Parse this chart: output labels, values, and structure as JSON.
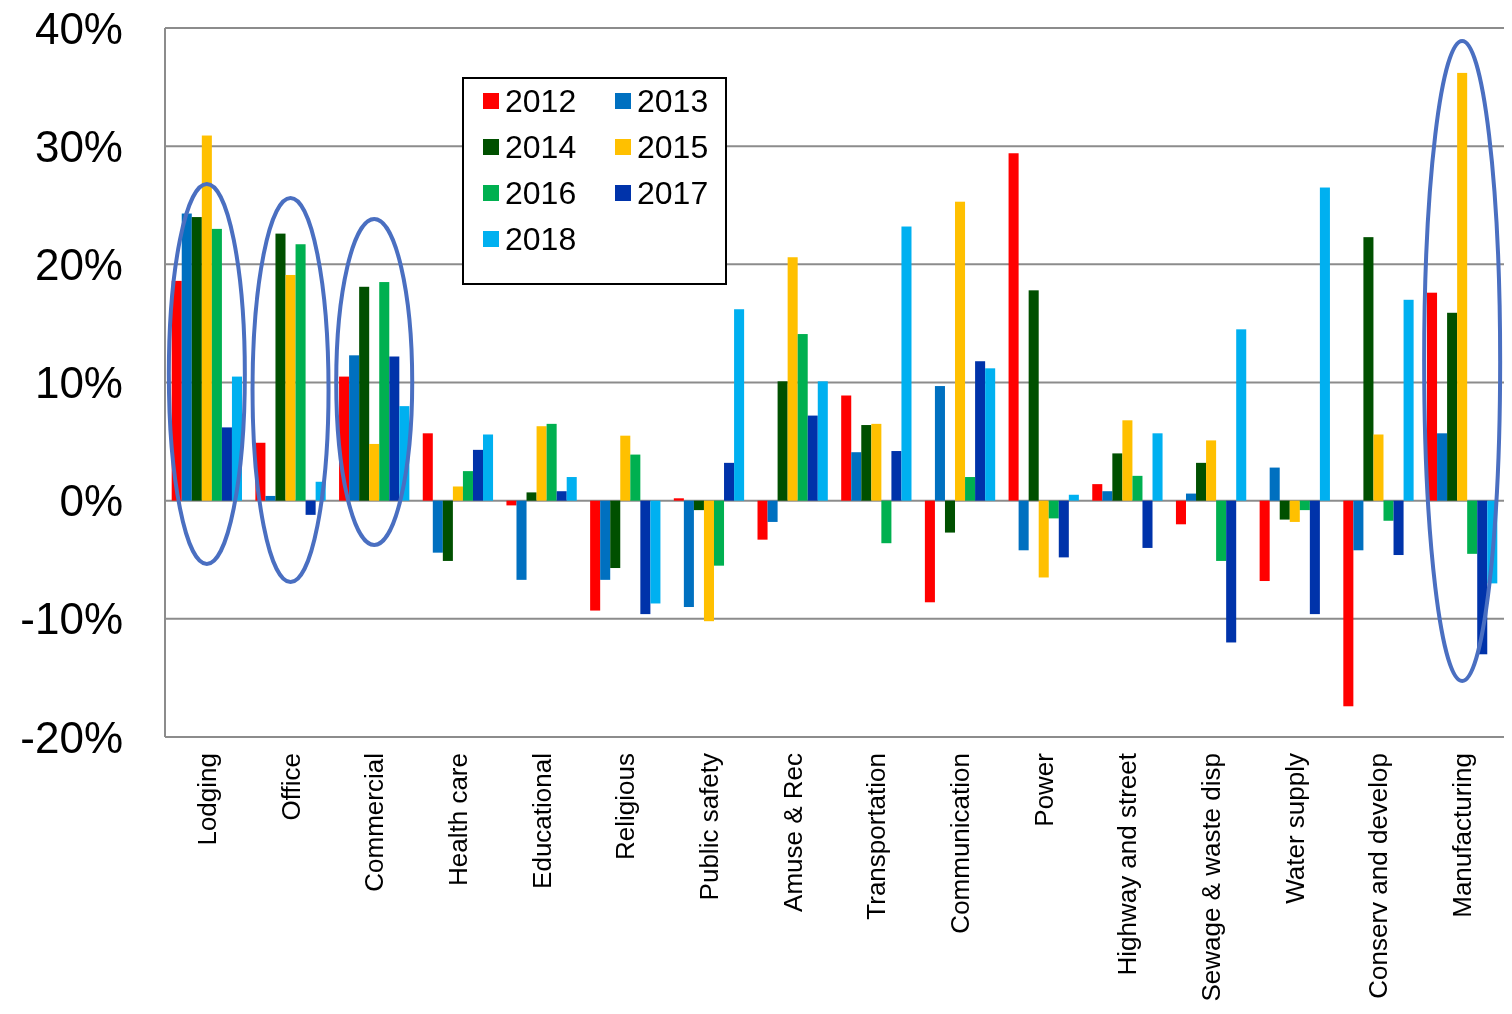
{
  "chart_data": {
    "type": "bar",
    "categories": [
      "Lodging",
      "Office",
      "Commercial",
      "Health care",
      "Educational",
      "Religious",
      "Public safety",
      "Amuse & Rec",
      "Transportation",
      "Communication",
      "Power",
      "Highway and street",
      "Sewage & waste disp",
      "Water supply",
      "Conserv and develop",
      "Manufacturing"
    ],
    "series": [
      {
        "name": "2012",
        "color": "#ff0000",
        "values": [
          18.6,
          4.9,
          10.5,
          5.7,
          -0.4,
          -9.3,
          0.2,
          -3.3,
          8.9,
          -8.6,
          29.4,
          1.4,
          -2.0,
          -6.8,
          -17.4,
          17.6
        ]
      },
      {
        "name": "2013",
        "color": "#0070c0",
        "values": [
          24.3,
          0.4,
          12.3,
          -4.4,
          -6.7,
          -6.7,
          -9.0,
          -1.8,
          4.1,
          9.7,
          -4.2,
          0.8,
          0.6,
          2.8,
          -4.2,
          5.7
        ]
      },
      {
        "name": "2014",
        "color": "#005000",
        "values": [
          24.0,
          22.6,
          18.1,
          -5.1,
          0.7,
          -5.7,
          -0.8,
          10.1,
          6.4,
          -2.7,
          17.8,
          4.0,
          3.2,
          -1.6,
          22.3,
          15.9
        ]
      },
      {
        "name": "2015",
        "color": "#ffc000",
        "values": [
          30.9,
          19.1,
          4.8,
          1.2,
          6.3,
          5.5,
          -10.2,
          20.6,
          6.5,
          25.3,
          -6.5,
          6.8,
          5.1,
          -1.8,
          5.6,
          36.2
        ]
      },
      {
        "name": "2016",
        "color": "#00b050",
        "values": [
          23.0,
          21.7,
          18.5,
          2.5,
          6.5,
          3.9,
          -5.5,
          14.1,
          -3.6,
          2.0,
          -1.5,
          2.1,
          -5.1,
          -0.8,
          -1.7,
          -4.5
        ]
      },
      {
        "name": "2017",
        "color": "#0033aa",
        "values": [
          6.2,
          -1.2,
          12.2,
          4.3,
          0.8,
          -9.6,
          3.2,
          7.2,
          4.2,
          11.8,
          -4.8,
          -4.0,
          -12.0,
          -9.6,
          -4.6,
          -13.0
        ]
      },
      {
        "name": "2018",
        "color": "#00b0f0",
        "values": [
          10.5,
          1.6,
          8.0,
          5.6,
          2.0,
          -8.7,
          16.2,
          10.1,
          23.2,
          11.2,
          0.5,
          5.7,
          14.5,
          26.5,
          17.0,
          -7.0
        ]
      }
    ],
    "ylim": [
      -20,
      40
    ],
    "yticks": [
      {
        "value": -20,
        "label": "-20%"
      },
      {
        "value": -10,
        "label": "-10%"
      },
      {
        "value": 0,
        "label": "0%"
      },
      {
        "value": 10,
        "label": "10%"
      },
      {
        "value": 20,
        "label": "20%"
      },
      {
        "value": 30,
        "label": "30%"
      },
      {
        "value": 40,
        "label": "40%"
      }
    ],
    "grid": "y",
    "legend": "top left"
  }
}
